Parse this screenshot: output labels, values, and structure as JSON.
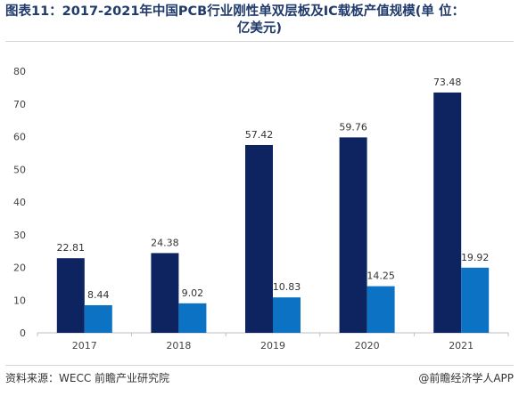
{
  "header": {
    "title_line1": "图表11：2017-2021年中国PCB行业刚性单双层板及IC载板产值规模(单  位：",
    "title_line2": "亿美元)"
  },
  "footer": {
    "source": "资料来源：WECC 前瞻产业研究院",
    "brand": "@前瞻经济学人APP"
  },
  "chart_data": {
    "type": "bar",
    "categories": [
      "2017",
      "2018",
      "2019",
      "2020",
      "2021"
    ],
    "series": [
      {
        "values": [
          22.81,
          24.38,
          57.42,
          59.76,
          73.48
        ],
        "color": "#0d2461"
      },
      {
        "values": [
          8.44,
          9.02,
          10.83,
          14.25,
          19.92
        ],
        "color": "#0b72c4"
      }
    ],
    "ylim": [
      0,
      80
    ],
    "yticks": [
      0,
      10,
      20,
      30,
      40,
      50,
      60,
      70,
      80
    ],
    "grid": false,
    "legend": "none"
  }
}
